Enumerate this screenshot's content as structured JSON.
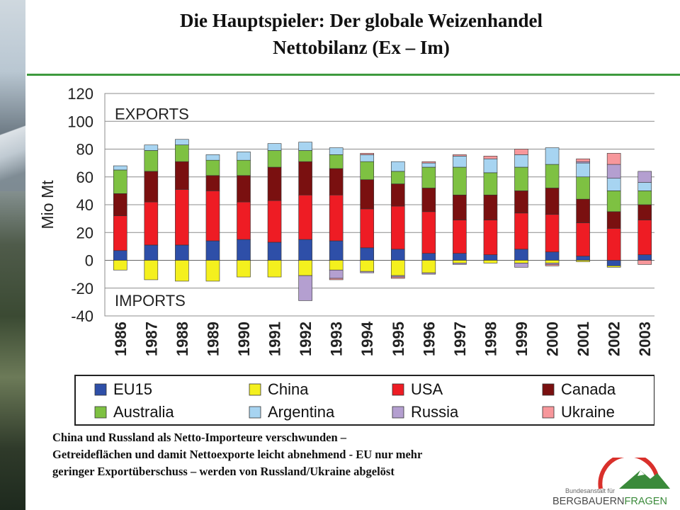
{
  "title": {
    "line1": "Die Hauptspieler: Der globale Weizenhandel",
    "line2": "Nettobilanz (Ex – Im)"
  },
  "caption": {
    "line1": "China und Russland als Netto-Importeure verschwunden –",
    "line2": "Getreideflächen und damit Nettoexporte leicht abnehmend - EU nur mehr",
    "line3": "geringer Exportüberschuss – werden von Russland/Ukraine abgelöst"
  },
  "logo": {
    "small_text": "Bundesanstalt für",
    "part1": "BERGBAUERN",
    "part2": "FRAGEN",
    "colors": {
      "arc": "#d9302b",
      "mountain": "#3a8a3a",
      "text_dark": "#4a4a4a"
    }
  },
  "chart_data": {
    "type": "bar",
    "stacked": true,
    "ylabel": "Mio Mt",
    "ylim": [
      -40,
      120
    ],
    "yticks": [
      -40,
      -20,
      0,
      20,
      40,
      60,
      80,
      100,
      120
    ],
    "grid": true,
    "annotations": [
      "EXPORTS",
      "IMPORTS"
    ],
    "legend_position": "bottom",
    "categories": [
      "1986",
      "1987",
      "1988",
      "1989",
      "1990",
      "1991",
      "1992",
      "1993",
      "1994",
      "1995",
      "1996",
      "1997",
      "1998",
      "1999",
      "2000",
      "2001",
      "2002",
      "2003"
    ],
    "series": [
      {
        "name": "EU15",
        "color": "#2e4fa8",
        "values": [
          7,
          11,
          11,
          14,
          15,
          13,
          15,
          14,
          9,
          8,
          5,
          5,
          4,
          8,
          6,
          3,
          -4,
          4
        ]
      },
      {
        "name": "China",
        "color": "#f4f01e",
        "values": [
          -7,
          -14,
          -15,
          -15,
          -12,
          -12,
          -11,
          -7,
          -8,
          -11,
          -9,
          -2,
          -2,
          -2,
          -2,
          -1,
          -1,
          0
        ]
      },
      {
        "name": "USA",
        "color": "#ee1c24",
        "values": [
          25,
          31,
          40,
          36,
          27,
          30,
          32,
          33,
          28,
          31,
          30,
          24,
          25,
          26,
          27,
          24,
          23,
          25
        ]
      },
      {
        "name": "Canada",
        "color": "#7a1010",
        "values": [
          16,
          22,
          20,
          11,
          19,
          24,
          24,
          19,
          21,
          16,
          17,
          18,
          18,
          16,
          19,
          17,
          12,
          11
        ]
      },
      {
        "name": "Australia",
        "color": "#7ec142",
        "values": [
          17,
          15,
          12,
          11,
          11,
          12,
          8,
          10,
          13,
          9,
          15,
          20,
          16,
          17,
          17,
          16,
          15,
          10
        ]
      },
      {
        "name": "Argentina",
        "color": "#a7d4f1",
        "values": [
          3,
          4,
          4,
          4,
          6,
          5,
          6,
          5,
          5,
          7,
          3,
          8,
          10,
          9,
          12,
          10,
          9,
          6
        ]
      },
      {
        "name": "Russia",
        "color": "#b49fd0",
        "values": [
          0,
          0,
          0,
          0,
          0,
          0,
          -18,
          -6,
          -1,
          -1,
          -1,
          -1,
          0,
          -3,
          -1,
          1,
          10,
          8
        ]
      },
      {
        "name": "Ukraine",
        "color": "#f7979b",
        "values": [
          0,
          0,
          0,
          0,
          0,
          0,
          0,
          -1,
          1,
          -1,
          1,
          1,
          2,
          4,
          -1,
          2,
          8,
          -3
        ]
      }
    ]
  }
}
